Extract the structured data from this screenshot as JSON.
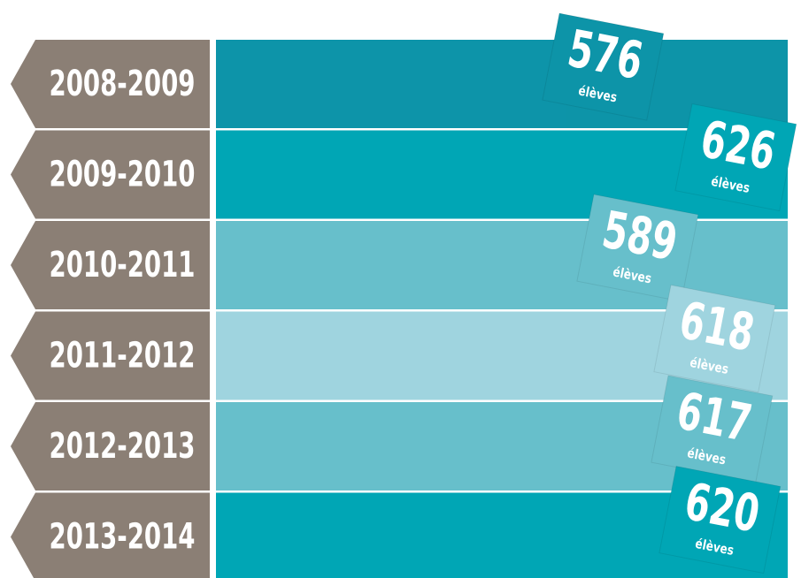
{
  "chart_data": {
    "type": "bar",
    "categories": [
      "2008-2009",
      "2009-2010",
      "2010-2011",
      "2011-2012",
      "2012-2013",
      "2013-2014"
    ],
    "values": [
      576,
      626,
      589,
      618,
      617,
      620
    ],
    "unit": "élèves",
    "colors": [
      "#0d94a8",
      "#00a6b5",
      "#67bfcb",
      "#9fd4df",
      "#67bfcb",
      "#00a6b5"
    ],
    "label_color": "#8b7f75",
    "xlim": [
      444,
      626
    ]
  }
}
